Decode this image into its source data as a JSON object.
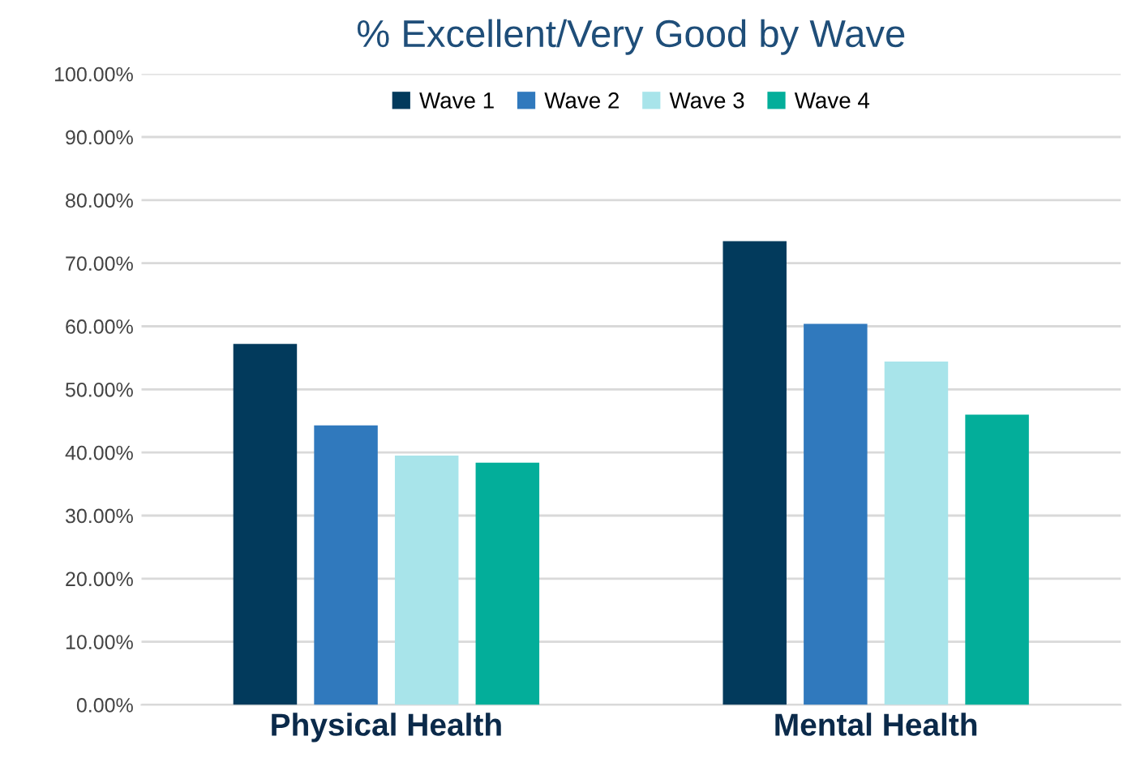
{
  "chart_data": {
    "type": "bar",
    "title": "% Excellent/Very Good by Wave",
    "categories": [
      "Physical Health",
      "Mental Health"
    ],
    "series": [
      {
        "name": "Wave 1",
        "color": "#023a5c",
        "values": [
          57.2,
          73.5
        ]
      },
      {
        "name": "Wave 2",
        "color": "#3079bd",
        "values": [
          44.3,
          60.4
        ]
      },
      {
        "name": "Wave 3",
        "color": "#a8e4ea",
        "values": [
          39.5,
          54.4
        ]
      },
      {
        "name": "Wave 4",
        "color": "#03ae9a",
        "values": [
          38.4,
          46.0
        ]
      }
    ],
    "ylim": [
      0,
      100
    ],
    "yticks": [
      {
        "value": 0,
        "label": "0.00%"
      },
      {
        "value": 10,
        "label": "10.00%"
      },
      {
        "value": 20,
        "label": "20.00%"
      },
      {
        "value": 30,
        "label": "30.00%"
      },
      {
        "value": 40,
        "label": "40.00%"
      },
      {
        "value": 50,
        "label": "50.00%"
      },
      {
        "value": 60,
        "label": "60.00%"
      },
      {
        "value": 70,
        "label": "70.00%"
      },
      {
        "value": 80,
        "label": "80.00%"
      },
      {
        "value": 90,
        "label": "90.00%"
      },
      {
        "value": 100,
        "label": "100.00%"
      }
    ],
    "grid": "y",
    "legend": "top"
  }
}
